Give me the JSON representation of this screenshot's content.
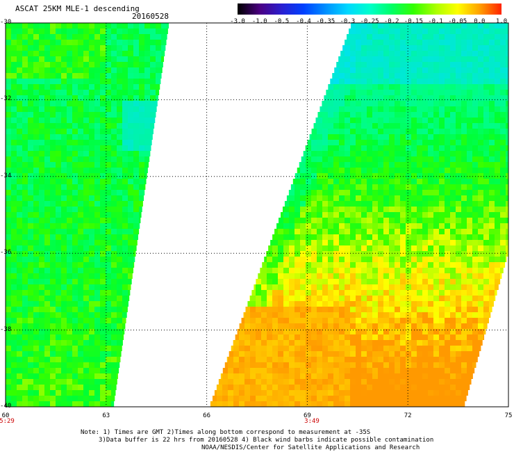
{
  "header": {
    "title": "ASCAT 25KM MLE-1 descending",
    "date": "20160528"
  },
  "colorbar": {
    "labels": [
      "-3.0",
      "-1.0",
      "-0.5",
      "-0.4",
      "-0.35",
      "-0.3",
      "-0.25",
      "-0.2",
      "-0.15",
      "-0.1",
      "-0.05",
      "0.0",
      "1.0"
    ],
    "colors": [
      "#000000",
      "#4b0082",
      "#2a1fd0",
      "#0040ff",
      "#0090ff",
      "#00d8ff",
      "#00ffcc",
      "#00ff66",
      "#33ff00",
      "#aaff00",
      "#ffff00",
      "#ffa000",
      "#ff2000"
    ]
  },
  "axes": {
    "y_ticks": [
      "-30",
      "-32",
      "-34",
      "-36",
      "-38",
      "-40"
    ],
    "x_ticks": [
      "60",
      "63",
      "66",
      "69",
      "72",
      "75"
    ]
  },
  "times": [
    "5:29",
    "3:49"
  ],
  "notes": {
    "line1": "Note: 1) Times are GMT 2)Times along bottom correspond to measurement at -35S",
    "line2": "3)Data buffer is 22 hrs from 20160528 4) Black wind barbs indicate possible contamination",
    "line3": "NOAA/NESDIS/Center for Satellite Applications and Research"
  }
}
